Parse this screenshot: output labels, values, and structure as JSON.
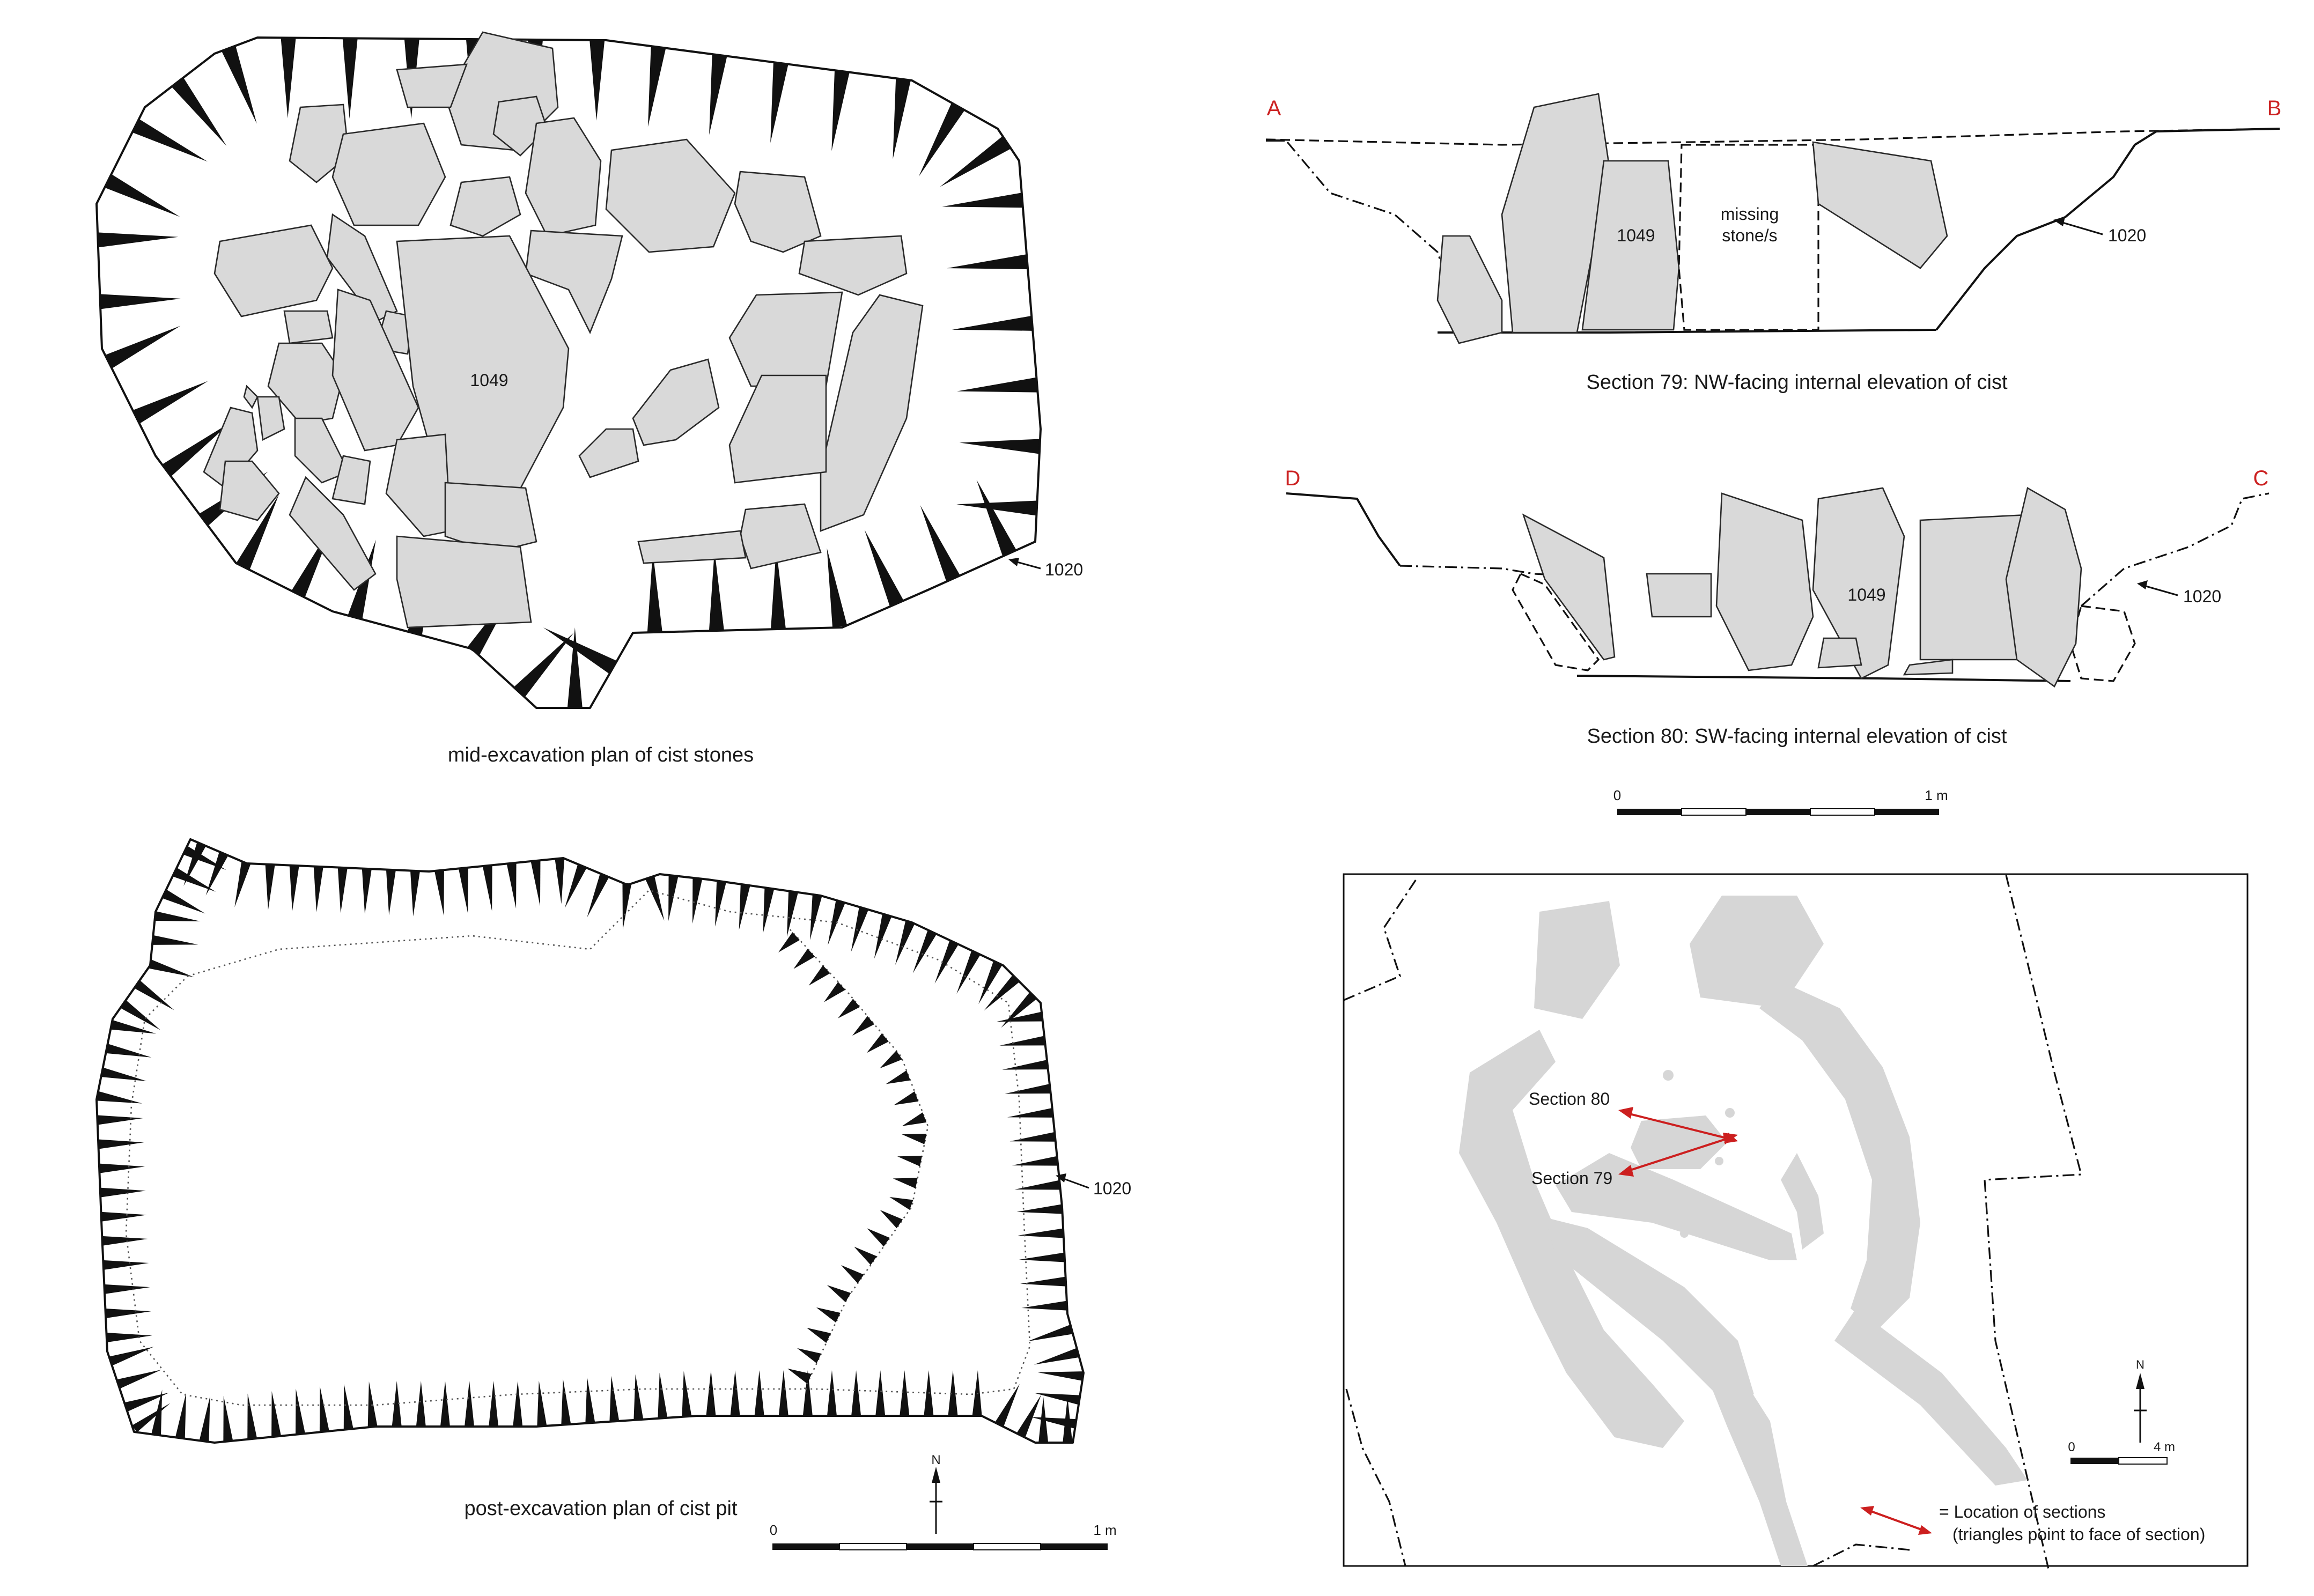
{
  "stone_number": "1049",
  "cut_number": "1020",
  "panels": {
    "plan_mid": {
      "caption": "mid-excavation plan of cist stones"
    },
    "plan_post": {
      "caption": "post-excavation plan of cist pit"
    },
    "section79": {
      "caption": "Section 79: NW-facing internal elevation of cist",
      "left_end": "A",
      "right_end": "B",
      "missing_label_line1": "missing",
      "missing_label_line2": "stone/s"
    },
    "section80": {
      "caption": "Section 80: SW-facing internal elevation of cist",
      "left_end": "D",
      "right_end": "C"
    },
    "location_map": {
      "section80_label": "Section 80",
      "section79_label": "Section 79",
      "legend_line1": "= Location of sections",
      "legend_line2": "(triangles point to face of section)"
    }
  },
  "scales": {
    "section_scale": {
      "start": "0",
      "end": "1 m"
    },
    "plan_scale": {
      "start": "0",
      "end": "1 m"
    },
    "map_scale": {
      "start": "0",
      "end": "4 m"
    }
  },
  "north_label": "N",
  "colors": {
    "stone_fill": "#d9d9d9",
    "section_marker": "#cc1f1f",
    "line": "#111111"
  }
}
